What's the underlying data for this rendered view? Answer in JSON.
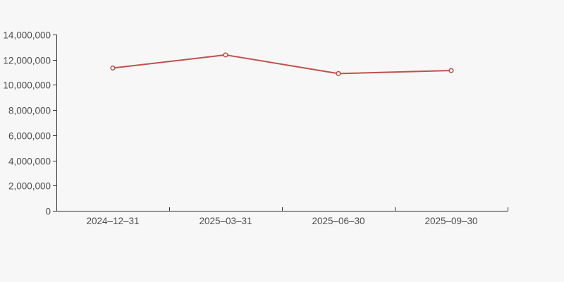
{
  "page": {
    "background_color": "#f7f7f7"
  },
  "chart_data": {
    "type": "line",
    "title": "",
    "xlabel": "",
    "ylabel": "",
    "categories": [
      "2024–12–31",
      "2025–03–31",
      "2025–06–30",
      "2025–09–30"
    ],
    "series": [
      {
        "name": "value",
        "values": [
          11340000,
          12380000,
          10900000,
          11140000
        ],
        "color": "#c0504d"
      }
    ],
    "ylim": [
      0,
      14000000
    ],
    "y_tick_step": 2000000,
    "y_tick_labels": [
      "0",
      "2,000,000",
      "4,000,000",
      "6,000,000",
      "8,000,000",
      "10,000,000",
      "12,000,000",
      "14,000,000"
    ],
    "grid": false,
    "legend": false,
    "axis_color": "#333333",
    "label_color": "#4d4d4d",
    "marker": {
      "shape": "circle",
      "fill": "#ffffff",
      "radius": 2.8
    }
  }
}
